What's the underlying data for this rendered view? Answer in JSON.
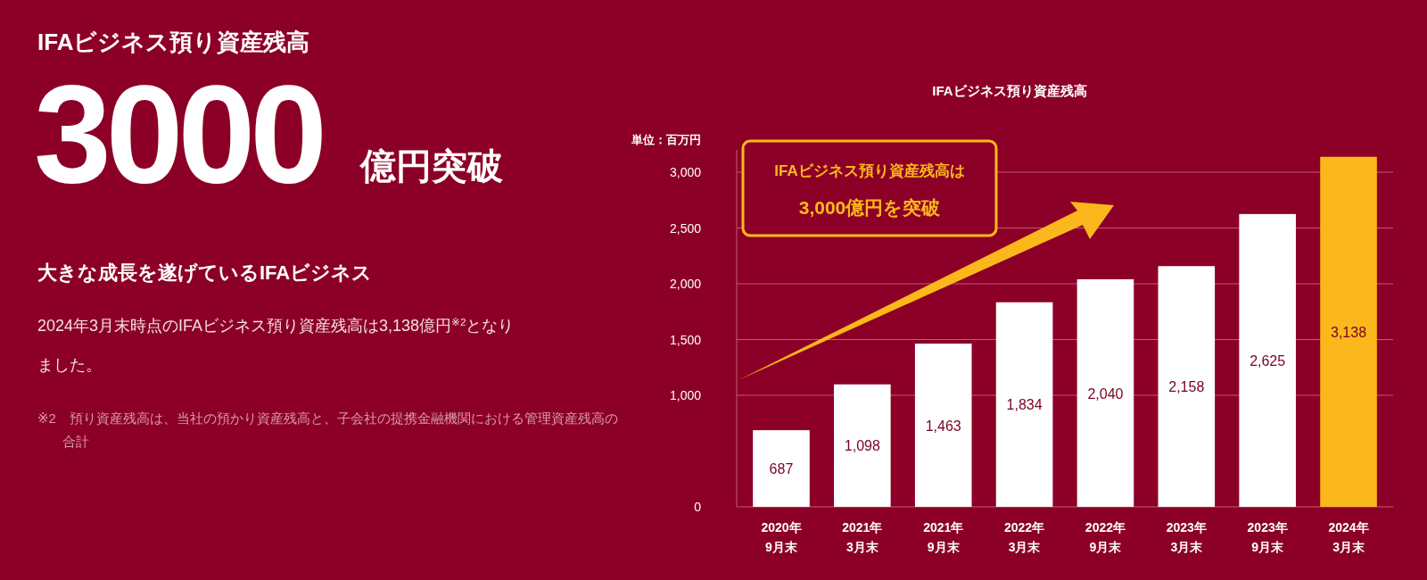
{
  "chart_data": {
    "type": "bar",
    "title": "IFAビジネス預り資産残高",
    "ylabel": "単位：百万円",
    "annotations": [
      "IFAビジネス預り資産残高",
      "3000",
      "億円突破",
      "大きな成長を遂げているIFAビジネス",
      "2024年3月末時点のIFAビジネス預り資産残高は3,138億円$^{※2}$となりました。",
      "※2　預り資産残高は、当社の預かり資産残高と、子会社の提携金融機関における管理資産残高の合計",
      "IFAビジネス預り資産残高は",
      "3,000億円を突破"
    ],
    "categories": [
      "2020年\n9月末",
      "2021年\n3月末",
      "2021年\n9月末",
      "2022年\n3月末",
      "2022年\n9月末",
      "2023年\n3月末",
      "2023年\n9月末",
      "2024年\n3月末"
    ],
    "values": [
      687,
      1098,
      1463,
      1834,
      2040,
      2158,
      2625,
      3138
    ],
    "colors": [
      "#ffffff",
      "#ffffff",
      "#ffffff",
      "#ffffff",
      "#ffffff",
      "#ffffff",
      "#ffffff",
      "#fbb81c"
    ],
    "value_labels": [
      "687",
      "1,098",
      "1,463",
      "1,834",
      "2,040",
      "2,158",
      "2,625",
      "3,138"
    ],
    "ylim": [
      0,
      3200
    ],
    "yticks": [
      {
        "value": 0,
        "label": "0"
      },
      {
        "value": 1000,
        "label": "1,000"
      },
      {
        "value": 1500,
        "label": "1,500"
      },
      {
        "value": 2000,
        "label": "2,000"
      },
      {
        "value": 2500,
        "label": "2,500"
      },
      {
        "value": 3000,
        "label": "3,000"
      }
    ],
    "grid": "y",
    "data_labels": true
  }
}
